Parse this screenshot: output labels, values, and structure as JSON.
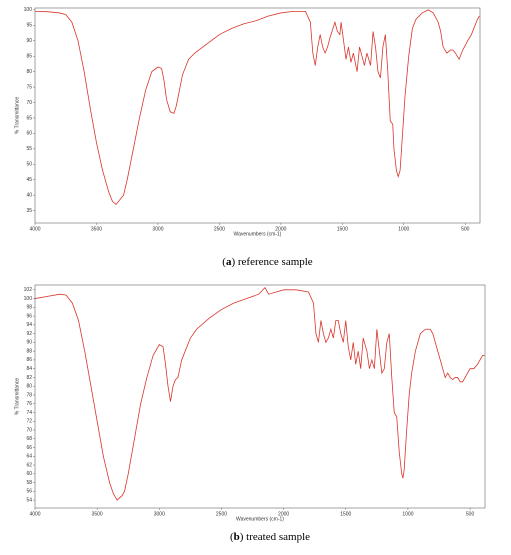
{
  "chart_data": [
    {
      "type": "line",
      "ylabel": "% Transmittance",
      "xlabel": "Wavenumbers (cm-1)",
      "caption": [
        "(",
        "a",
        ") reference sample"
      ],
      "xlim": [
        4000,
        380
      ],
      "ylim": [
        31,
        100.6
      ],
      "xticks": [
        4000,
        3500,
        3000,
        2500,
        2000,
        1500,
        1000,
        500
      ],
      "yticks": [
        35,
        40,
        45,
        50,
        55,
        60,
        65,
        70,
        75,
        80,
        85,
        90,
        95,
        100
      ],
      "series": [
        {
          "color": "#d9352b",
          "x": [
            4000,
            3900,
            3800,
            3750,
            3700,
            3650,
            3600,
            3550,
            3500,
            3450,
            3400,
            3370,
            3340,
            3300,
            3280,
            3250,
            3200,
            3150,
            3100,
            3050,
            3000,
            2970,
            2950,
            2930,
            2900,
            2870,
            2850,
            2830,
            2800,
            2750,
            2700,
            2600,
            2500,
            2400,
            2300,
            2200,
            2100,
            2000,
            1900,
            1800,
            1760,
            1740,
            1720,
            1700,
            1680,
            1660,
            1640,
            1620,
            1600,
            1560,
            1540,
            1520,
            1510,
            1490,
            1470,
            1450,
            1430,
            1410,
            1380,
            1360,
            1340,
            1320,
            1300,
            1270,
            1250,
            1230,
            1210,
            1190,
            1170,
            1150,
            1130,
            1110,
            1090,
            1080,
            1060,
            1045,
            1030,
            1010,
            990,
            960,
            930,
            900,
            850,
            800,
            760,
            720,
            700,
            680,
            650,
            620,
            600,
            580,
            550,
            520,
            480,
            450,
            420,
            400,
            385
          ],
          "values": [
            99.5,
            99.4,
            99,
            98.5,
            96,
            90,
            80,
            68,
            57,
            48,
            41,
            38,
            37,
            39,
            40,
            45,
            55,
            65,
            74,
            80,
            81.5,
            81,
            77,
            71,
            67,
            66.5,
            69,
            73,
            79,
            84,
            86,
            89,
            92,
            94,
            95.5,
            96.5,
            98,
            99,
            99.5,
            99.5,
            96,
            86,
            82,
            88,
            92,
            88,
            86,
            88,
            91,
            96,
            93,
            92,
            96,
            90,
            84,
            88,
            83,
            86,
            80,
            88,
            85,
            82,
            86,
            82,
            93,
            88,
            80,
            78,
            88,
            92,
            80,
            64,
            63,
            55,
            48,
            46,
            48,
            60,
            72,
            85,
            94,
            97,
            99,
            100,
            99,
            96,
            93,
            88,
            86,
            87,
            87,
            86,
            84,
            87,
            90,
            92,
            95,
            97,
            98
          ]
        }
      ]
    },
    {
      "type": "line",
      "ylabel": "% Transmittance",
      "xlabel": "Wavenumbers (cm-1)",
      "caption": [
        "(",
        "b",
        ") treated sample"
      ],
      "xlim": [
        4000,
        380
      ],
      "ylim": [
        52.2,
        103.1
      ],
      "xticks": [
        4000,
        3500,
        3000,
        2500,
        2000,
        1500,
        1000,
        500
      ],
      "yticks": [
        54,
        56,
        58,
        60,
        62,
        64,
        66,
        68,
        70,
        72,
        74,
        76,
        78,
        80,
        82,
        84,
        86,
        88,
        90,
        92,
        94,
        96,
        98,
        100,
        102
      ],
      "series": [
        {
          "color": "#d9352b",
          "x": [
            4000,
            3900,
            3800,
            3750,
            3700,
            3650,
            3600,
            3550,
            3500,
            3450,
            3400,
            3370,
            3340,
            3300,
            3280,
            3250,
            3200,
            3150,
            3100,
            3050,
            3000,
            2970,
            2950,
            2930,
            2910,
            2890,
            2870,
            2850,
            2820,
            2750,
            2700,
            2600,
            2500,
            2400,
            2300,
            2200,
            2150,
            2120,
            2000,
            1900,
            1800,
            1760,
            1740,
            1720,
            1700,
            1680,
            1660,
            1640,
            1620,
            1600,
            1580,
            1560,
            1540,
            1520,
            1500,
            1480,
            1460,
            1440,
            1420,
            1400,
            1380,
            1360,
            1330,
            1310,
            1290,
            1270,
            1250,
            1230,
            1210,
            1190,
            1170,
            1150,
            1130,
            1110,
            1090,
            1070,
            1050,
            1040,
            1030,
            1010,
            990,
            970,
            940,
            900,
            860,
            820,
            800,
            780,
            760,
            740,
            720,
            700,
            680,
            660,
            640,
            620,
            600,
            580,
            560,
            540,
            520,
            500,
            470,
            440,
            400,
            385
          ],
          "values": [
            100,
            100.5,
            101,
            100.8,
            99,
            95,
            88,
            80,
            72,
            64,
            58,
            55.5,
            54,
            55,
            56,
            60,
            68,
            76,
            82,
            87,
            89.5,
            89,
            85,
            80,
            76.5,
            80,
            81.5,
            82,
            86,
            91,
            93,
            95.5,
            97.5,
            99,
            100,
            101,
            102.5,
            101,
            102,
            102,
            101.5,
            99,
            92,
            90,
            95,
            92,
            90,
            91,
            93,
            91,
            95,
            95,
            92,
            90,
            95,
            89,
            86,
            90,
            85,
            88,
            84,
            91,
            88,
            84,
            86,
            84,
            93,
            88,
            83,
            84,
            90,
            92,
            82,
            74,
            73,
            65,
            60,
            59,
            61,
            70,
            78,
            83,
            88,
            92,
            93,
            93,
            92,
            90,
            88,
            86,
            84,
            82,
            83,
            82,
            81.5,
            82,
            82,
            81,
            81,
            82,
            83,
            84,
            84,
            85,
            87,
            87
          ]
        }
      ]
    }
  ]
}
